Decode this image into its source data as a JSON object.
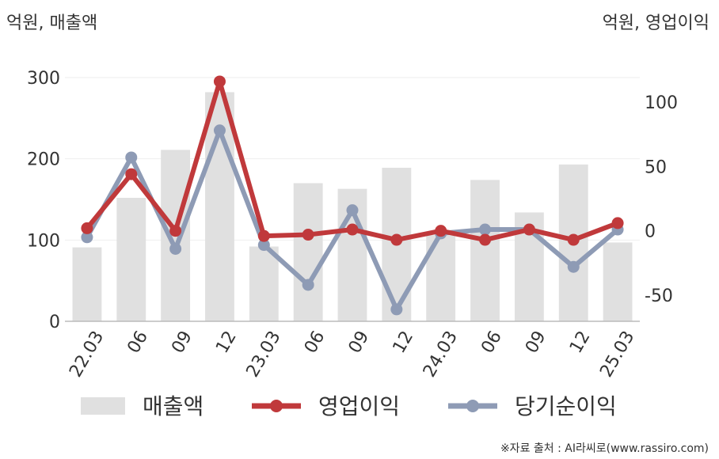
{
  "chart_data": {
    "type": "bar",
    "left_axis_unit": "억원, 매출액",
    "right_axis_unit": "억원, 영업이익",
    "categories": [
      "22.03",
      "06",
      "09",
      "12",
      "23.03",
      "06",
      "09",
      "12",
      "24.03",
      "06",
      "09",
      "12",
      "25.03"
    ],
    "ylim_left": [
      0,
      300
    ],
    "yticks_left": [
      "0",
      "100",
      "200",
      "300"
    ],
    "ylim_right": [
      -80,
      130
    ],
    "yticks_right": [
      "-50",
      "0",
      "50",
      "100"
    ],
    "series": [
      {
        "name": "매출액",
        "type": "bar",
        "axis": "left",
        "color": "#e0e0e0",
        "values": [
          91,
          152,
          211,
          282,
          92,
          170,
          163,
          189,
          106,
          174,
          134,
          193,
          97
        ]
      },
      {
        "name": "영업이익",
        "type": "line",
        "axis": "right",
        "color": "#c0393b",
        "values": [
          2,
          44,
          0,
          116,
          -4,
          -3,
          1,
          -7,
          0,
          -7,
          1,
          -7,
          6
        ]
      },
      {
        "name": "당기순이익",
        "type": "line",
        "axis": "right",
        "color": "#8e9bb5",
        "values": [
          -5,
          57,
          -14,
          78,
          -11,
          -42,
          16,
          -61,
          -2,
          1,
          1,
          -28,
          1
        ]
      }
    ],
    "grid": true,
    "legend_position": "bottom"
  },
  "source": "※자료 출처 : AI라씨로(www.rassiro.com)"
}
